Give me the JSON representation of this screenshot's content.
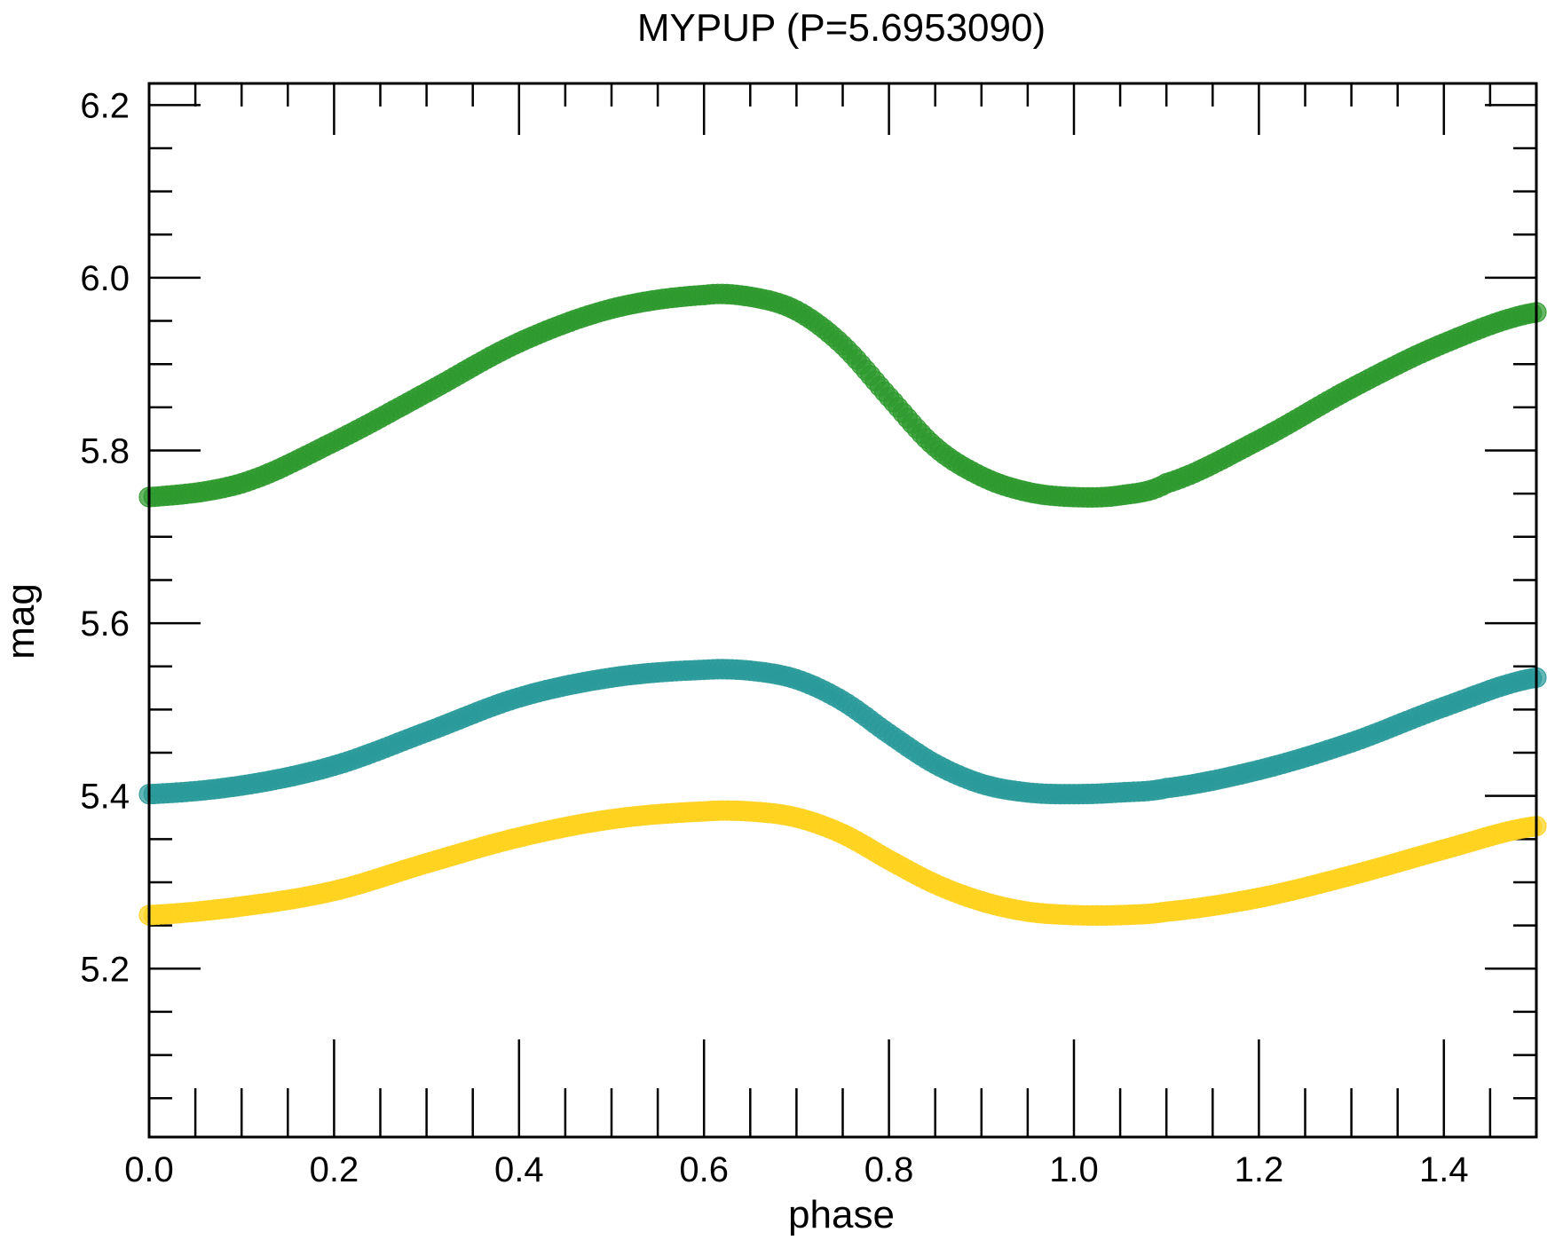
{
  "chart_data": {
    "type": "scatter",
    "title": "MYPUP (P=5.6953090)",
    "xlabel": "phase",
    "ylabel": "mag",
    "xlim": [
      0.0,
      1.5
    ],
    "ylim": [
      6.225,
      5.005
    ],
    "y_inverted": true,
    "grid": false,
    "legend": "none",
    "x_major_ticks": [
      0.0,
      0.2,
      0.4,
      0.6,
      0.8,
      1.0,
      1.2,
      1.4
    ],
    "x_tick_labels": [
      "0.0",
      "0.2",
      "0.4",
      "0.6",
      "0.8",
      "1.0",
      "1.2",
      "1.4"
    ],
    "x_minor_step": 0.05,
    "y_major_ticks": [
      5.2,
      5.4,
      5.6,
      5.8,
      6.0,
      6.2
    ],
    "y_tick_labels": [
      "5.2",
      "5.4",
      "5.6",
      "5.8",
      "6.0",
      "6.2"
    ],
    "y_minor_step": 0.05,
    "series": [
      {
        "color": "#ffd21e",
        "x": [
          0.0,
          0.1,
          0.2,
          0.3,
          0.4,
          0.5,
          0.6,
          0.65,
          0.7,
          0.75,
          0.8,
          0.85,
          0.9,
          0.95,
          1.0,
          1.05,
          1.1,
          1.2,
          1.3,
          1.4,
          1.5
        ],
        "y": [
          5.262,
          5.272,
          5.29,
          5.322,
          5.352,
          5.373,
          5.382,
          5.382,
          5.375,
          5.356,
          5.326,
          5.298,
          5.278,
          5.266,
          5.262,
          5.262,
          5.266,
          5.282,
          5.308,
          5.338,
          5.365
        ]
      },
      {
        "color": "#2a9a9a",
        "x": [
          0.0,
          0.1,
          0.2,
          0.3,
          0.4,
          0.5,
          0.6,
          0.65,
          0.7,
          0.75,
          0.8,
          0.85,
          0.9,
          0.95,
          1.0,
          1.05,
          1.1,
          1.2,
          1.3,
          1.4,
          1.5
        ],
        "y": [
          5.402,
          5.412,
          5.435,
          5.474,
          5.514,
          5.537,
          5.546,
          5.545,
          5.535,
          5.51,
          5.472,
          5.437,
          5.414,
          5.404,
          5.402,
          5.404,
          5.409,
          5.43,
          5.462,
          5.503,
          5.537
        ]
      },
      {
        "color": "#2e9a2e",
        "x": [
          0.0,
          0.1,
          0.2,
          0.3,
          0.4,
          0.5,
          0.6,
          0.65,
          0.7,
          0.75,
          0.8,
          0.85,
          0.9,
          0.95,
          1.0,
          1.05,
          1.1,
          1.2,
          1.3,
          1.4,
          1.5
        ],
        "y": [
          5.746,
          5.762,
          5.81,
          5.867,
          5.925,
          5.964,
          5.98,
          5.978,
          5.962,
          5.922,
          5.862,
          5.804,
          5.77,
          5.752,
          5.746,
          5.748,
          5.762,
          5.812,
          5.872,
          5.924,
          5.96
        ]
      }
    ]
  }
}
